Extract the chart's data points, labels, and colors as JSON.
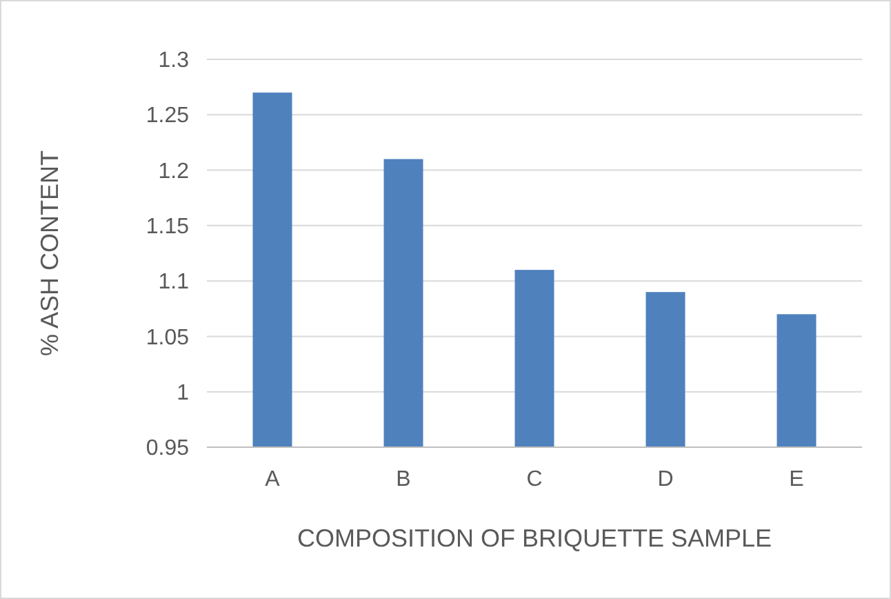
{
  "chart_data": {
    "type": "bar",
    "xlabel": "COMPOSITION OF BRIQUETTE SAMPLE",
    "ylabel": "% ASH CONTENT",
    "categories": [
      "A",
      "B",
      "C",
      "D",
      "E"
    ],
    "values": [
      1.27,
      1.21,
      1.11,
      1.09,
      1.07
    ],
    "color": "#4f81bd",
    "ylim": [
      0.95,
      1.3
    ],
    "yticks": [
      0.95,
      1,
      1.05,
      1.1,
      1.15,
      1.2,
      1.25,
      1.3
    ],
    "grid": "y"
  }
}
